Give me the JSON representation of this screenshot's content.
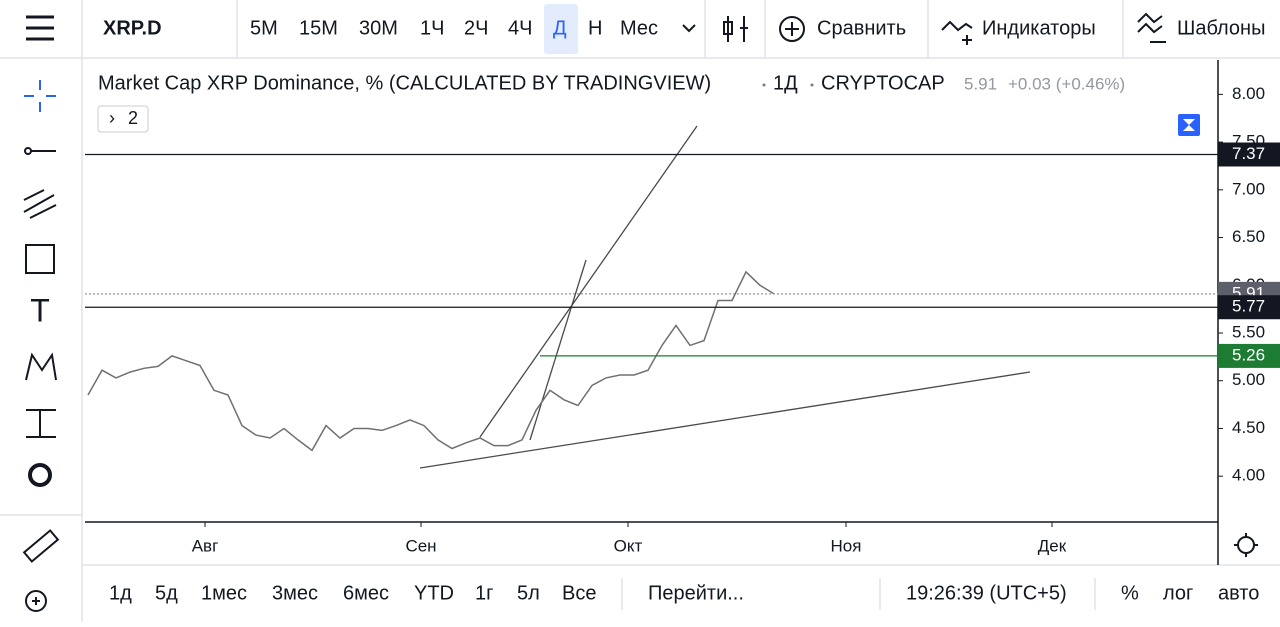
{
  "top_toolbar": {
    "symbol": "XRP.D",
    "intervals": [
      "5М",
      "15М",
      "30М",
      "1Ч",
      "2Ч",
      "4Ч",
      "Д",
      "Н",
      "Мес"
    ],
    "compare": "Сравнить",
    "indicators": "Индикаторы",
    "templates": "Шаблоны"
  },
  "legend": {
    "title": "Market Cap XRP Dominance, % (CALCULATED BY TRADINGVIEW)",
    "interval": "1Д",
    "source": "CRYPTOCAP",
    "last": "5.91",
    "change": "+0.03 (+0.46%)",
    "collapsed": "2"
  },
  "chart_data": {
    "type": "line",
    "color": "#707070",
    "values": [
      4.85,
      5.11,
      5.03,
      5.09,
      5.13,
      5.15,
      5.26,
      5.21,
      5.16,
      4.9,
      4.85,
      4.53,
      4.43,
      4.4,
      4.5,
      4.38,
      4.27,
      4.53,
      4.4,
      4.5,
      4.5,
      4.48,
      4.53,
      4.59,
      4.53,
      4.38,
      4.29,
      4.35,
      4.4,
      4.32,
      4.32,
      4.38,
      4.69,
      4.9,
      4.8,
      4.74,
      4.95,
      5.03,
      5.06,
      5.06,
      5.11,
      5.37,
      5.58,
      5.37,
      5.42,
      5.84,
      5.84,
      6.14,
      6.0,
      5.91
    ],
    "ylim": [
      3.52,
      8.36
    ],
    "yticks": [
      {
        "value": 4,
        "label": "4.00"
      },
      {
        "value": 4.5,
        "label": "4.50"
      },
      {
        "value": 5,
        "label": "5.00"
      },
      {
        "value": 5.5,
        "label": "5.50"
      },
      {
        "value": 6,
        "label": "6.00"
      },
      {
        "value": 6.5,
        "label": "6.50"
      },
      {
        "value": 7,
        "label": "7.00"
      },
      {
        "value": 7.5,
        "label": "7.50"
      },
      {
        "value": 8,
        "label": "8.00"
      }
    ],
    "x_labels": [
      "Авг",
      "Сен",
      "Окт",
      "Ноя",
      "Дек"
    ],
    "price_lines": [
      {
        "value": 7.37,
        "color": "#131722"
      },
      {
        "value": 5.91,
        "color": "#5d606b"
      },
      {
        "value": 5.77,
        "color": "#131722"
      },
      {
        "value": 5.26,
        "color": "#1e7b34"
      }
    ]
  },
  "bottom_toolbar": {
    "ranges": [
      "1д",
      "5д",
      "1мес",
      "3мес",
      "6мес",
      "YTD",
      "1г",
      "5л",
      "Все"
    ],
    "goto": "Перейти...",
    "time": "19:26:39 (UTC+5)",
    "percent": "%",
    "log": "лог",
    "auto": "авто"
  }
}
